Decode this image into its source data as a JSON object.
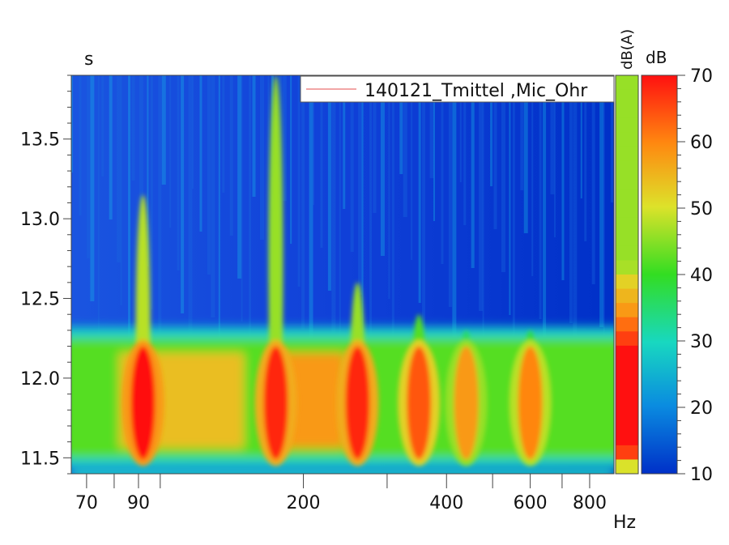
{
  "chart_data": {
    "type": "heatmap",
    "ylabel": "s",
    "xlabel": "Hz",
    "x_scale": "log",
    "xlim": [
      65,
      900
    ],
    "ylim": [
      11.4,
      13.9
    ],
    "x_ticks": [
      70,
      90,
      200,
      400,
      600,
      800
    ],
    "y_ticks": [
      11.5,
      12.0,
      12.5,
      13.0,
      13.5
    ],
    "legend": {
      "entries": [
        "140121_Tmittel ,Mic_Ohr"
      ],
      "placement": "top-right"
    },
    "colorbar_db": {
      "label": "dB",
      "ticks": [
        10,
        20,
        30,
        40,
        50,
        60,
        70
      ],
      "range": [
        10,
        70
      ]
    },
    "colorbar_dba": {
      "label": "dB(A)"
    },
    "time_band": {
      "t_start": 11.5,
      "t_end": 12.25,
      "background_level_db": 36
    },
    "peaks": [
      {
        "freq": 92,
        "level_db": 70,
        "t_top": 13.15
      },
      {
        "freq": 175,
        "level_db": 68,
        "t_top": 13.9
      },
      {
        "freq": 260,
        "level_db": 68,
        "t_top": 12.6
      },
      {
        "freq": 350,
        "level_db": 64,
        "t_top": 12.4
      },
      {
        "freq": 440,
        "level_db": 58,
        "t_top": 12.3
      },
      {
        "freq": 600,
        "level_db": 60,
        "t_top": 12.3
      }
    ],
    "colors": {
      "low": "#0033cc",
      "mid": "#22dd33",
      "high": "#ff1111"
    }
  }
}
